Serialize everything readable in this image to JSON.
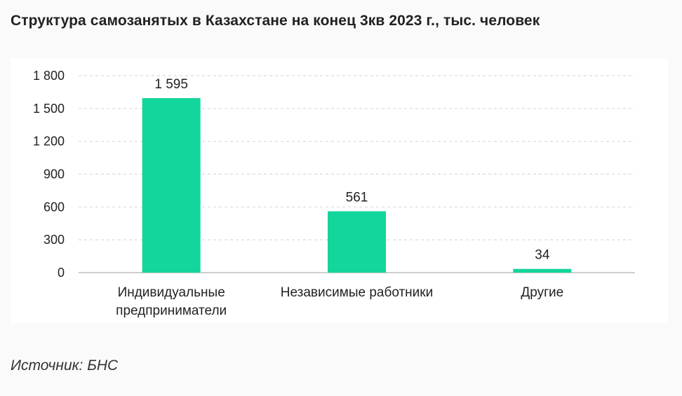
{
  "title": "Структура самозанятых в Казахстане на конец 3кв 2023 г., тыс. человек",
  "source": "Источник: БНС",
  "colors": {
    "bar": "#12d69b",
    "grid": "#d9d9d9",
    "axis": "#bfbfbf",
    "text": "#222222"
  },
  "chart_data": {
    "type": "bar",
    "categories": [
      [
        "Индивидуальные",
        "предприниматели"
      ],
      [
        "Независимые работники"
      ],
      [
        "Другие"
      ]
    ],
    "values": [
      1595,
      561,
      34
    ],
    "data_labels": [
      "1 595",
      "561",
      "34"
    ],
    "ylim": [
      0,
      1800
    ],
    "yticks": [
      0,
      300,
      600,
      900,
      1200,
      1500,
      1800
    ],
    "ytick_labels": [
      "0",
      "300",
      "600",
      "900",
      "1 200",
      "1 500",
      "1 800"
    ],
    "grid": true,
    "legend": false
  }
}
